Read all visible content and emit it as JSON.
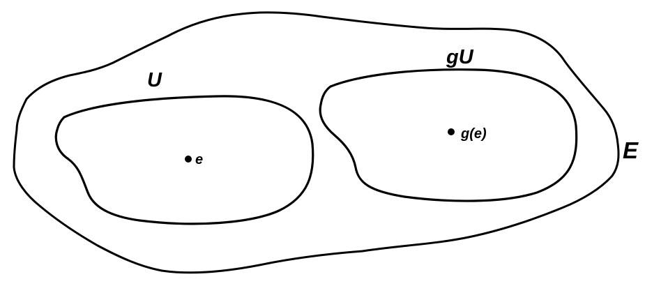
{
  "diagram": {
    "outer_set_label": "E",
    "left_region_label": "U",
    "right_region_label": "gU",
    "left_point_label": "e",
    "right_point_label": "g(e)"
  },
  "colors": {
    "stroke": "#000000",
    "background": "#ffffff"
  }
}
